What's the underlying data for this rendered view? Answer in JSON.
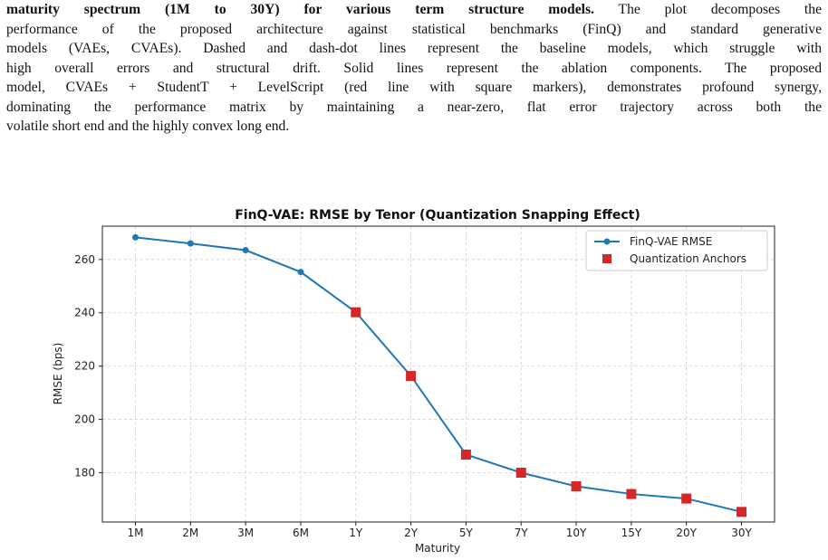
{
  "caption": {
    "line1_bold": "maturity spectrum (1M to 30Y) for various term structure models.",
    "line1_rest": " The plot decomposes the",
    "line2": "performance of the proposed architecture against statistical benchmarks (FinQ) and standard generative",
    "line3": "models (VAEs, CVAEs). Dashed and dash-dot lines represent the baseline models, which struggle with",
    "line4": "high overall errors and structural drift. Solid lines represent the ablation components. The proposed",
    "line5": "model, CVAEs + StudentT + LevelScript (red line with square markers), demonstrates profound synergy,",
    "line6": "dominating the performance matrix by maintaining a near-zero, flat error trajectory across both the",
    "line7": "volatile short end and the highly convex long end."
  },
  "chart_data": {
    "type": "line",
    "title": "FinQ-VAE: RMSE by Tenor (Quantization Snapping Effect)",
    "xlabel": "Maturity",
    "ylabel": "RMSE (bps)",
    "categories": [
      "1M",
      "2M",
      "3M",
      "6M",
      "1Y",
      "2Y",
      "5Y",
      "7Y",
      "10Y",
      "15Y",
      "20Y",
      "30Y"
    ],
    "ylim": [
      161.5,
      272.5
    ],
    "yticks": [
      180,
      200,
      220,
      240,
      260
    ],
    "grid": true,
    "legend_position": "top-right",
    "series": [
      {
        "name": "FinQ-VAE RMSE",
        "values": [
          268.3,
          266.0,
          263.5,
          255.3,
          240.2,
          216.3,
          186.8,
          180.0,
          174.9,
          172.0,
          170.3,
          165.3
        ],
        "color": "#1f77b4",
        "marker": "circle"
      },
      {
        "name": "Quantization Anchors",
        "x": [
          "1Y",
          "2Y",
          "5Y",
          "7Y",
          "10Y",
          "15Y",
          "20Y",
          "30Y"
        ],
        "values": [
          240.2,
          216.3,
          186.8,
          180.0,
          174.9,
          172.0,
          170.3,
          165.3
        ],
        "color": "#d62728",
        "marker": "square"
      }
    ]
  }
}
